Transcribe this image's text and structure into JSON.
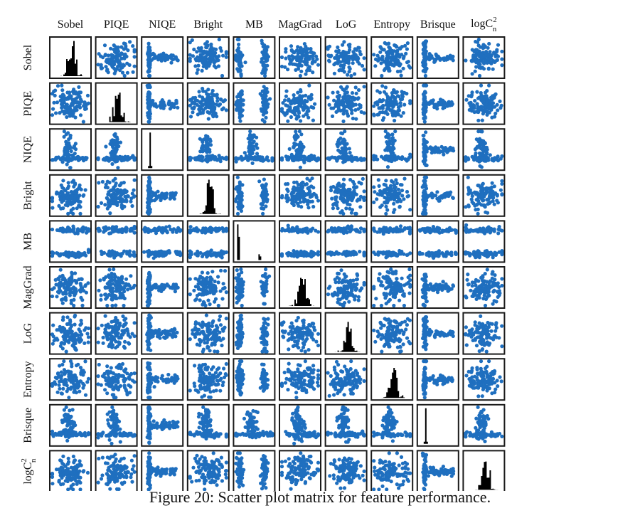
{
  "caption": "Figure 20: Scatter plot matrix for feature performance.",
  "colors": {
    "scatter": "#1f6fbf",
    "histogram": "#000000",
    "frame": "#1a1a1a"
  },
  "chart_data": {
    "type": "scatter",
    "variables": [
      "Sobel",
      "PIQE",
      "NIQE",
      "Bright",
      "MB",
      "MagGrad",
      "LoG",
      "Entropy",
      "Brisque",
      "logC_n^2"
    ],
    "variable_display": [
      {
        "base": "Sobel"
      },
      {
        "base": "PIQE"
      },
      {
        "base": "NIQE"
      },
      {
        "base": "Bright"
      },
      {
        "base": "MB"
      },
      {
        "base": "MagGrad"
      },
      {
        "base": "LoG"
      },
      {
        "base": "Entropy"
      },
      {
        "base": "Brisque"
      },
      {
        "base": "logC",
        "sup": "2",
        "sub": "n"
      }
    ],
    "diagonal": "histogram",
    "off_diagonal": "scatter",
    "grid": false,
    "legend": "none"
  }
}
